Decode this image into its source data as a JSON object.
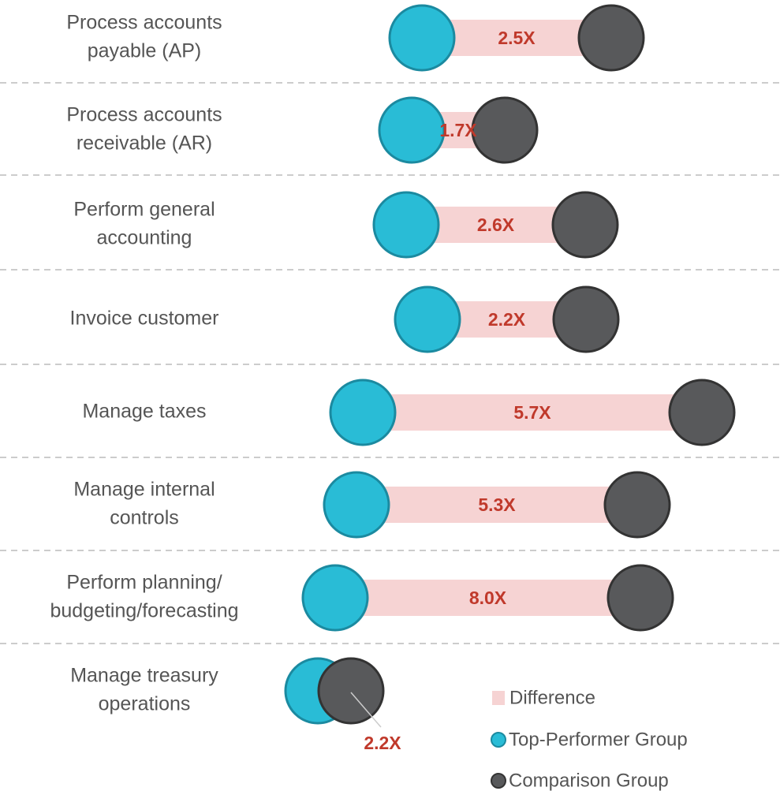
{
  "chart_data": {
    "type": "dumbbell",
    "categories": [
      [
        "Process accounts",
        "payable (AP)"
      ],
      [
        "Process accounts",
        "receivable (AR)"
      ],
      [
        "Perform general",
        "accounting"
      ],
      [
        "Invoice customer"
      ],
      [
        "Manage taxes"
      ],
      [
        "Manage internal",
        "controls"
      ],
      [
        "Perform planning/",
        "budgeting/forecasting"
      ],
      [
        "Manage treasury",
        "operations"
      ]
    ],
    "difference": {
      "name": "Difference",
      "color": "#f6d3d3",
      "values": [
        2.5,
        1.7,
        2.6,
        2.2,
        5.7,
        5.3,
        8.0,
        2.2
      ],
      "value_labels": [
        "2.5X",
        "1.7X",
        "2.6X",
        "2.2X",
        "5.7X",
        "5.3X",
        "8.0X",
        "2.2X"
      ],
      "label_color": "#c0392b"
    },
    "series": [
      {
        "name": "Top-Performer Group",
        "color": "#29bcd6",
        "values": [
          53.5,
          52.2,
          51.5,
          54.2,
          46.0,
          45.2,
          42.5,
          40.3
        ]
      },
      {
        "name": "Comparison Group",
        "color": "#58595b",
        "values": [
          77.5,
          64.0,
          74.2,
          74.3,
          89.0,
          80.8,
          81.2,
          44.5
        ]
      }
    ],
    "xlim": [
      0,
      100
    ]
  }
}
